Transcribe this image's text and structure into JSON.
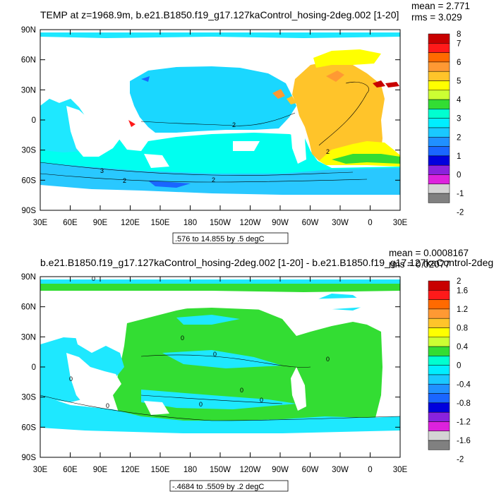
{
  "chart_data": [
    {
      "type": "heatmap",
      "title": "TEMP at z=1968.9m, b.e21.B1850.f19_g17.127kaControl_hosing-2deg.002 [1-20]",
      "stats": {
        "mean": "mean = 2.771",
        "rms": "rms = 3.029"
      },
      "info": ".576 to 14.855 by .5 degC",
      "x_ticks": [
        "30E",
        "60E",
        "90E",
        "120E",
        "150E",
        "180",
        "150W",
        "120W",
        "90W",
        "60W",
        "30W",
        "0",
        "30E"
      ],
      "y_ticks": [
        "90N",
        "60N",
        "30N",
        "0",
        "30S",
        "60S",
        "90S"
      ],
      "colorbar": {
        "labels": [
          "8",
          "7",
          "6",
          "5",
          "4",
          "3",
          "2",
          "1",
          "0",
          "-1",
          "-2"
        ],
        "colors": [
          "#c80000",
          "#ff1a1a",
          "#ff6a00",
          "#ff9933",
          "#ffc42a",
          "#ffff00",
          "#ccff33",
          "#33dd33",
          "#00ffd0",
          "#00eeff",
          "#1ac8ff",
          "#2090ff",
          "#1a66ff",
          "#0000dd",
          "#8a22dd",
          "#dd22dd",
          "#d4d4d4",
          "#808080"
        ]
      },
      "contour_labels": [
        "2",
        "2",
        "2",
        "3",
        "2"
      ]
    },
    {
      "type": "heatmap",
      "title": "b.e21.B1850.f19_g17.127kaControl_hosing-2deg.002 [1-20] - b.e21.B1850.f19_g17.127kaControl-2deg.",
      "stats": {
        "mean": "mean = 0.0008167",
        "rms": "rms = 0.02077"
      },
      "info": "-.4684 to .5509 by .2 degC",
      "x_ticks": [
        "30E",
        "60E",
        "90E",
        "120E",
        "150E",
        "180",
        "150W",
        "120W",
        "90W",
        "60W",
        "30W",
        "0",
        "30E"
      ],
      "y_ticks": [
        "90N",
        "60N",
        "30N",
        "0",
        "30S",
        "60S",
        "90S"
      ],
      "colorbar": {
        "labels": [
          "2",
          "1.6",
          "1.2",
          "0.8",
          "0.4",
          "0",
          "-0.4",
          "-0.8",
          "-1.2",
          "-1.6",
          "-2"
        ],
        "colors": [
          "#c80000",
          "#ff1a1a",
          "#ff6a00",
          "#ff9933",
          "#ffc42a",
          "#ffff00",
          "#ccff33",
          "#33dd33",
          "#00ffd0",
          "#00eeff",
          "#1ac8ff",
          "#2090ff",
          "#1a66ff",
          "#0000dd",
          "#8a22dd",
          "#dd22dd",
          "#d4d4d4",
          "#808080"
        ]
      },
      "contour_labels": [
        "0",
        "0",
        "0",
        "0",
        "0",
        "0",
        "0",
        "0",
        "0"
      ]
    }
  ]
}
